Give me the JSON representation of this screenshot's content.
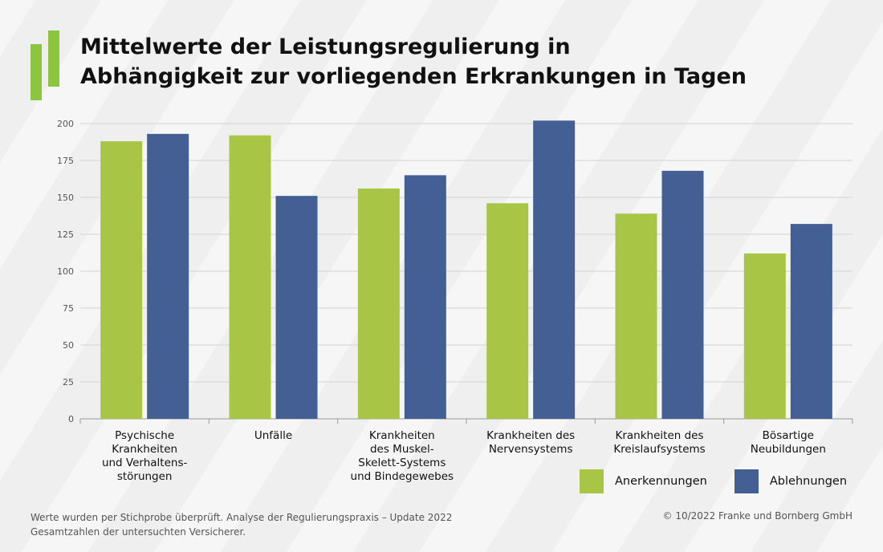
{
  "title_lines": [
    "Mittelwerte der Leistungsregulierung in",
    "Abhängigkeit zur vorliegenden Erkrankungen in Tagen"
  ],
  "colors": {
    "anerkennungen": "#a8c545",
    "ablehnungen": "#435f94",
    "logo": "#8cc63f"
  },
  "chart_data": {
    "type": "bar",
    "title": "Mittelwerte der Leistungsregulierung in Abhängigkeit zur vorliegenden Erkrankungen in Tagen",
    "categories": [
      [
        "Psychische",
        "Krankheiten",
        "und Verhaltens-",
        "störungen"
      ],
      [
        "Unfälle"
      ],
      [
        "Krankheiten",
        "des Muskel-",
        "Skelett-Systems",
        "und Bindegewebes"
      ],
      [
        "Krankheiten des",
        "Nervensystems"
      ],
      [
        "Krankheiten des",
        "Kreislaufsystems"
      ],
      [
        "Bösartige",
        "Neubildungen"
      ]
    ],
    "series": [
      {
        "name": "Anerkennungen",
        "values": [
          188,
          192,
          156,
          146,
          139,
          112
        ]
      },
      {
        "name": "Ablehnungen",
        "values": [
          193,
          151,
          165,
          202,
          168,
          132
        ]
      }
    ],
    "ylim": [
      0,
      200
    ],
    "yticks": [
      0,
      25,
      50,
      75,
      100,
      125,
      150,
      175,
      200
    ],
    "xlabel": "",
    "ylabel": "",
    "grid": true,
    "legend": "bottom-right"
  },
  "footer": {
    "left_lines": [
      "Werte wurden per Stichprobe überprüft. Analyse der Regulierungspraxis – Update 2022",
      "Gesamtzahlen der untersuchten Versicherer."
    ],
    "right": "© 10/2022 Franke und Bornberg GmbH"
  }
}
